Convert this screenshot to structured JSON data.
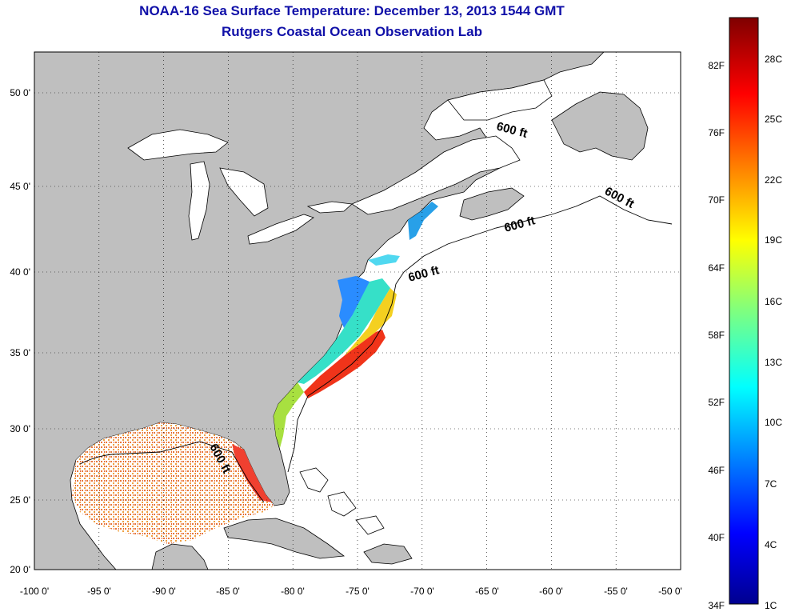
{
  "title": "NOAA-16 Sea Surface Temperature:  December 13, 2013 1544 GMT",
  "subtitle": "Rutgers Coastal Ocean Observation Lab",
  "axes": {
    "lon_ticks": [
      "-100 0'",
      "-95 0'",
      "-90 0'",
      "-85 0'",
      "-80 0'",
      "-75 0'",
      "-70 0'",
      "-65 0'",
      "-60 0'",
      "-55 0'",
      "-50 0'"
    ],
    "lat_ticks": [
      "50 0'",
      "45 0'",
      "40 0'",
      "35 0'",
      "30 0'",
      "25 0'",
      "20 0'"
    ]
  },
  "contour_labels": [
    "600 ft",
    "600 ft",
    "600 ft",
    "600 ft",
    "600 ft"
  ],
  "colorbar": {
    "fahrenheit": [
      "82F",
      "76F",
      "70F",
      "64F",
      "58F",
      "52F",
      "46F",
      "40F",
      "34F"
    ],
    "celsius": [
      "28C",
      "25C",
      "22C",
      "19C",
      "16C",
      "13C",
      "10C",
      "7C",
      "4C",
      "1C"
    ]
  },
  "colors": {
    "land": "#bfbfbf",
    "ocean": "#ffffff",
    "title": "#1010a8"
  }
}
